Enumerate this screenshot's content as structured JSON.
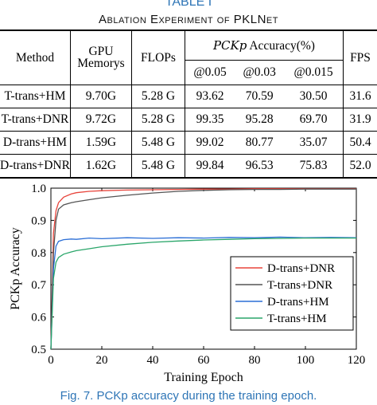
{
  "table": {
    "label": "TABLE I",
    "title": "Ablation Experiment of PKLNet",
    "headers": {
      "method": "Method",
      "gpu_line1": "GPU",
      "gpu_line2": "Memorys",
      "flops": "FLOPs",
      "accuracy_math": "PCKp",
      "accuracy_text": " Accuracy(%)",
      "thresholds": [
        "@0.05",
        "@0.03",
        "@0.015"
      ],
      "fps": "FPS"
    },
    "rows": [
      {
        "method": "T-trans+HM",
        "gpu": "9.70G",
        "flops": "5.28 G",
        "a005": "93.62",
        "a003": "70.59",
        "a0015": "30.50",
        "fps": "31.6"
      },
      {
        "method": "T-trans+DNR",
        "gpu": "9.72G",
        "flops": "5.28 G",
        "a005": "99.35",
        "a003": "95.28",
        "a0015": "69.70",
        "fps": "31.9"
      },
      {
        "method": "D-trans+HM",
        "gpu": "1.59G",
        "flops": "5.48 G",
        "a005": "99.02",
        "a003": "80.77",
        "a0015": "35.07",
        "fps": "50.4"
      },
      {
        "method": "D-trans+DNR",
        "gpu": "1.62G",
        "flops": "5.48 G",
        "a005": "99.84",
        "a003": "96.53",
        "a0015": "75.83",
        "fps": "52.0"
      }
    ]
  },
  "chart_data": {
    "type": "line",
    "xlabel": "Training Epoch",
    "ylabel": "PCKp Accuracy",
    "xlim": [
      0,
      120
    ],
    "ylim": [
      0.5,
      1.0
    ],
    "xticks": [
      "0",
      "20",
      "40",
      "60",
      "80",
      "100",
      "120"
    ],
    "yticks": [
      "0.5",
      "0.6",
      "0.7",
      "0.8",
      "0.9",
      "1.0"
    ],
    "grid": false,
    "legend_position": "bottom-right",
    "series": [
      {
        "name": "D-trans+DNR",
        "color": "#e8453c",
        "x": [
          0,
          1,
          2,
          3,
          5,
          8,
          10,
          15,
          20,
          30,
          40,
          50,
          60,
          70,
          80,
          90,
          100,
          110,
          120
        ],
        "y": [
          0.5,
          0.86,
          0.93,
          0.955,
          0.972,
          0.982,
          0.986,
          0.99,
          0.992,
          0.994,
          0.995,
          0.996,
          0.997,
          0.997,
          0.998,
          0.998,
          0.998,
          0.998,
          0.998
        ]
      },
      {
        "name": "T-trans+DNR",
        "color": "#555555",
        "x": [
          0,
          1,
          2,
          3,
          5,
          8,
          10,
          15,
          20,
          30,
          40,
          50,
          60,
          70,
          80,
          90,
          100,
          110,
          120
        ],
        "y": [
          0.5,
          0.8,
          0.9,
          0.935,
          0.948,
          0.955,
          0.958,
          0.964,
          0.97,
          0.978,
          0.985,
          0.99,
          0.993,
          0.995,
          0.996,
          0.996,
          0.997,
          0.997,
          0.997
        ]
      },
      {
        "name": "D-trans+HM",
        "color": "#2c6fd6",
        "x": [
          0,
          1,
          2,
          3,
          5,
          8,
          10,
          15,
          20,
          30,
          40,
          50,
          60,
          70,
          80,
          90,
          100,
          110,
          120
        ],
        "y": [
          0.5,
          0.75,
          0.82,
          0.835,
          0.84,
          0.842,
          0.841,
          0.845,
          0.843,
          0.846,
          0.844,
          0.846,
          0.845,
          0.847,
          0.846,
          0.848,
          0.846,
          0.847,
          0.846
        ]
      },
      {
        "name": "T-trans+HM",
        "color": "#2aa66a",
        "x": [
          0,
          1,
          2,
          3,
          5,
          8,
          10,
          15,
          20,
          30,
          40,
          50,
          60,
          70,
          80,
          90,
          100,
          110,
          120
        ],
        "y": [
          0.5,
          0.72,
          0.77,
          0.785,
          0.795,
          0.802,
          0.806,
          0.812,
          0.818,
          0.826,
          0.832,
          0.836,
          0.839,
          0.841,
          0.843,
          0.844,
          0.845,
          0.845,
          0.845
        ]
      }
    ]
  },
  "figure_caption": "Fig. 7.  PCKp accuracy during the training epoch."
}
